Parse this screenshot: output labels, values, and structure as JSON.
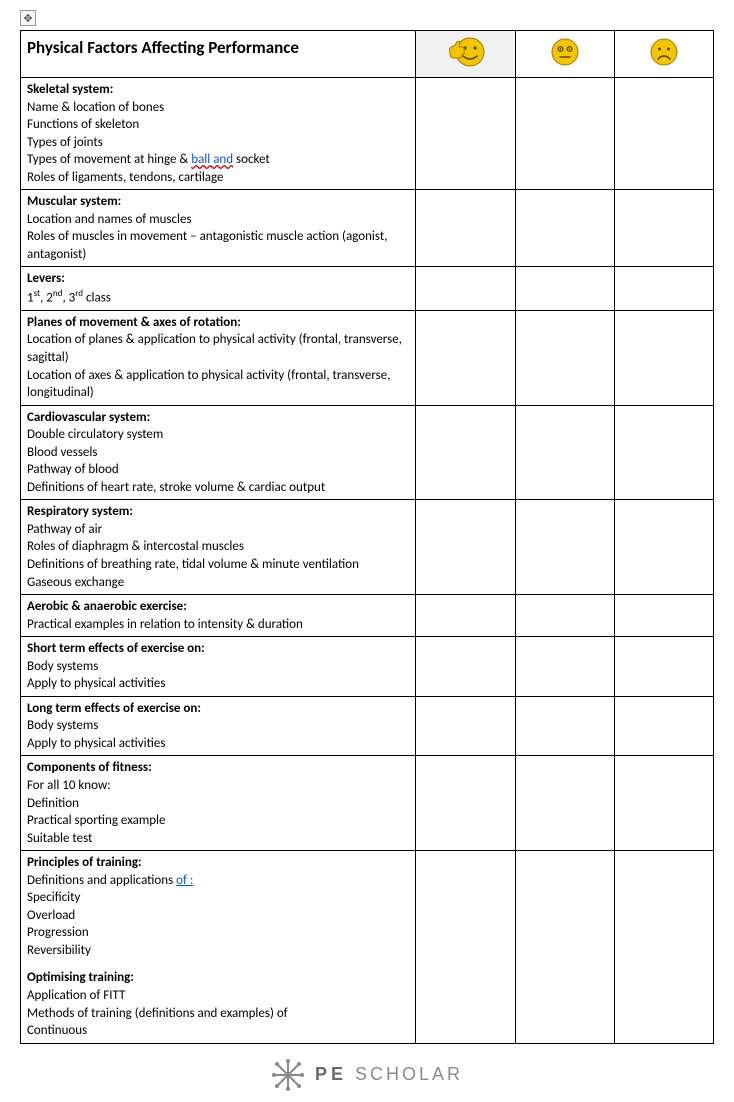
{
  "title": "Physical Factors Affecting Performance",
  "emojis": {
    "happy_bg": "#f2f2f2",
    "face_fill": "#f3c500",
    "face_stroke": "#a07e00",
    "hand_fill": "#f3c500"
  },
  "sections": [
    {
      "heading": "Skeletal system:",
      "lines": [
        "Name & location of bones",
        "Functions of skeleton",
        "Types of joints",
        "Types of movement at hinge & {spelllink}ball and{/spelllink} socket",
        "Roles of ligaments, tendons, cartilage"
      ]
    },
    {
      "heading": "Muscular system:",
      "lines": [
        "Location and names of muscles",
        "Roles of muscles in movement – antagonistic muscle action (agonist, antagonist)"
      ]
    },
    {
      "heading": "Levers:",
      "lines": [
        "1{sup}st{/sup}, 2{sup}nd{/sup}, 3{sup}rd{/sup} class"
      ]
    },
    {
      "heading": "Planes of movement & axes of rotation:",
      "lines": [
        "Location of planes & application to physical activity (frontal, transverse, sagittal)",
        "Location of axes & application to physical activity (frontal, transverse, longitudinal)"
      ]
    },
    {
      "heading": "Cardiovascular system:",
      "lines": [
        "Double circulatory system",
        "Blood vessels",
        "Pathway of blood",
        "Definitions of heart rate, stroke volume & cardiac output"
      ]
    },
    {
      "heading": "Respiratory system:",
      "lines": [
        "Pathway of air",
        "Roles of diaphragm & intercostal muscles",
        "Definitions of breathing rate, tidal volume & minute ventilation",
        "Gaseous exchange"
      ]
    },
    {
      "heading": "Aerobic & anaerobic exercise:",
      "lines": [
        "Practical examples in relation to intensity & duration"
      ]
    },
    {
      "heading": "Short term effects of exercise on:",
      "lines": [
        "Body systems",
        "Apply to physical activities"
      ]
    },
    {
      "heading": "Long term effects of exercise on:",
      "lines": [
        "Body systems",
        "Apply to physical activities"
      ]
    },
    {
      "heading": "Components of fitness:",
      "lines": [
        "For all 10 know:",
        "Definition",
        "Practical sporting example",
        "Suitable test"
      ]
    },
    {
      "heading": "Principles of training:",
      "lines": [
        "Definitions and applications {olink}of :{/olink}",
        "Specificity",
        "Overload",
        "Progression",
        "Reversibility",
        "{spacer}",
        "{b}Optimising training:{/b}",
        "Application of FITT",
        "Methods of training (definitions and examples) of",
        "Continuous"
      ]
    }
  ],
  "footer": {
    "brand_a": "PE",
    "brand_b": "SCHOLAR"
  }
}
